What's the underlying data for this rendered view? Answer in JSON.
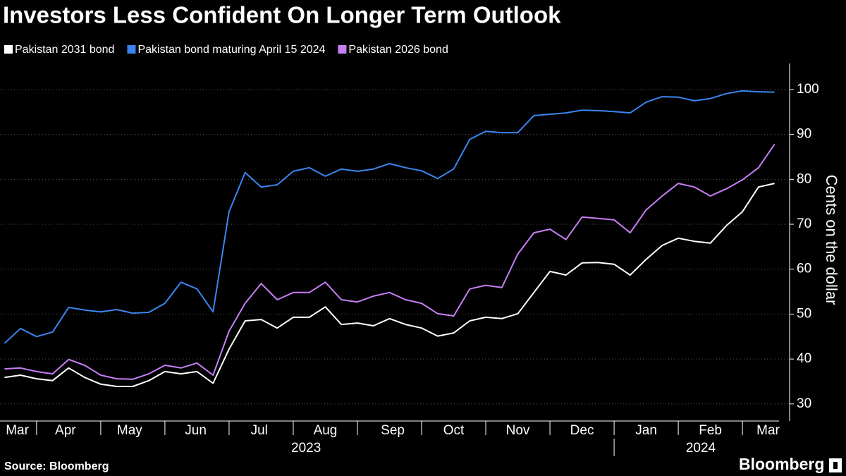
{
  "chart_data": {
    "type": "line",
    "title": "Investors Less Confident On Longer Term Outlook",
    "y_label": "Cents on the dollar",
    "source": "Source: Bloomberg",
    "brand": "Bloomberg",
    "x": [
      0.5,
      0.75,
      1,
      1.25,
      1.5,
      1.75,
      2,
      2.25,
      2.5,
      2.75,
      3,
      3.25,
      3.5,
      3.75,
      4,
      4.25,
      4.5,
      4.75,
      5,
      5.25,
      5.5,
      5.75,
      6,
      6.25,
      6.5,
      6.75,
      7,
      7.25,
      7.5,
      7.75,
      8,
      8.25,
      8.5,
      8.75,
      9,
      9.25,
      9.5,
      9.75,
      10,
      10.25,
      10.5,
      10.75,
      11,
      11.25,
      11.5,
      11.75,
      12,
      12.25,
      12.5
    ],
    "series": [
      {
        "name": "Pakistan 2031 bond",
        "color": "#ffffff",
        "values": [
          35.9,
          36.4,
          35.6,
          35.2,
          38,
          35.9,
          34.4,
          33.9,
          33.9,
          35.2,
          37.2,
          36.7,
          37.2,
          34.6,
          42.2,
          48.5,
          48.8,
          46.9,
          49.3,
          49.3,
          51.6,
          47.7,
          48,
          47.4,
          49,
          47.7,
          46.9,
          45.1,
          45.8,
          48.5,
          49.3,
          49,
          50.1,
          54.8,
          59.5,
          58.7,
          61.4,
          61.5,
          61.1,
          58.7,
          62.2,
          65.3,
          66.9,
          66.2,
          65.8,
          69.7,
          72.8,
          78.3,
          79.1
        ]
      },
      {
        "name": "Pakistan bond maturing April 15 2024",
        "color": "#3a86f0",
        "values": [
          43.5,
          46.8,
          45,
          46,
          51.5,
          50.9,
          50.5,
          51,
          50.2,
          50.4,
          52.4,
          57.1,
          55.6,
          50.5,
          72.8,
          81.5,
          78.3,
          78.8,
          81.8,
          82.6,
          80.7,
          82.3,
          81.8,
          82.3,
          83.5,
          82.6,
          81.9,
          80.2,
          82.3,
          88.9,
          90.7,
          90.4,
          90.4,
          94.2,
          94.5,
          94.8,
          95.4,
          95.3,
          95.1,
          94.8,
          97.2,
          98.4,
          98.3,
          97.5,
          98,
          99.1,
          99.7,
          99.5,
          99.4
        ]
      },
      {
        "name": "Pakistan 2026 bond",
        "color": "#c77ef5",
        "values": [
          37.8,
          38,
          37.2,
          36.7,
          39.9,
          38.6,
          36.4,
          35.6,
          35.5,
          36.7,
          38.6,
          38,
          39.1,
          36.4,
          46.2,
          52.4,
          56.8,
          53.2,
          54.8,
          54.8,
          57.1,
          53.2,
          52.7,
          54,
          54.8,
          53.2,
          52.4,
          50.1,
          49.6,
          55.6,
          56.4,
          55.9,
          63.4,
          68.1,
          68.9,
          66.6,
          71.6,
          71.3,
          71,
          68.1,
          73.2,
          76.3,
          79.1,
          78.3,
          76.3,
          77.9,
          79.9,
          82.6,
          87.8
        ]
      }
    ],
    "xlim": [
      0.43,
      12.57
    ],
    "xticks": [
      {
        "value": 0.7,
        "label": "Mar"
      },
      {
        "value": 1.45,
        "label": "Apr"
      },
      {
        "value": 2.45,
        "label": "May"
      },
      {
        "value": 3.48,
        "label": "Jun"
      },
      {
        "value": 4.47,
        "label": "Jul"
      },
      {
        "value": 5.5,
        "label": "Aug"
      },
      {
        "value": 6.55,
        "label": "Sep"
      },
      {
        "value": 7.5,
        "label": "Oct"
      },
      {
        "value": 8.5,
        "label": "Nov"
      },
      {
        "value": 9.5,
        "label": "Dec"
      },
      {
        "value": 10.5,
        "label": "Jan"
      },
      {
        "value": 11.5,
        "label": "Feb"
      },
      {
        "value": 12.4,
        "label": "Mar"
      }
    ],
    "month_boundaries": [
      1,
      2,
      3,
      4,
      5,
      6,
      7,
      8,
      9,
      10,
      11,
      12
    ],
    "year_labels": [
      {
        "value": 5.2,
        "label": "2023"
      },
      {
        "value": 11.35,
        "label": "2024"
      }
    ],
    "ylim": [
      26.2,
      105.8
    ],
    "yticks": [
      30,
      40,
      50,
      60,
      70,
      80,
      90,
      100
    ],
    "grid": true
  }
}
